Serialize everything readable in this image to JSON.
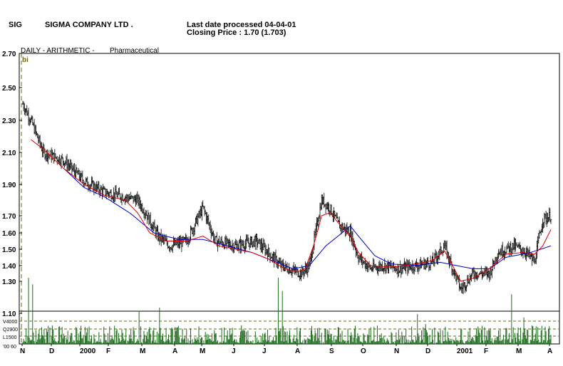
{
  "header": {
    "ticker": "SIG",
    "company": "SIGMA COMPANY LTD .",
    "last_date": "Last date processed 04-04-01",
    "closing": "Closing Price : 1.70  (1.703)"
  },
  "subheader": {
    "mode": "DAILY  -  ARITHMETIC  -",
    "sector": "Pharmaceutical",
    "marker": "bi"
  },
  "chart_data": {
    "type": "line",
    "title": "SIGMA COMPANY LTD .",
    "price_axis": {
      "ylim": [
        1.1,
        2.7
      ],
      "ticks": [
        "2.70",
        "2.50",
        "2.30",
        "2.10",
        "1.90",
        "1.70",
        "1.60",
        "1.50",
        "1.40",
        "1.30",
        "1.10"
      ]
    },
    "volume_axis": {
      "labels": [
        "V4000",
        "Q2900",
        "L1500",
        "'00  60"
      ]
    },
    "x_labels": [
      "N",
      "D",
      "2000",
      "F",
      "M",
      "A",
      "M",
      "J",
      "J",
      "A",
      "S",
      "O",
      "N",
      "D",
      "2001",
      "F",
      "M",
      "A"
    ],
    "grid": false,
    "colors": {
      "price": "#000000",
      "ma_short": "#e00000",
      "ma_long": "#0000cc",
      "volume": "#1a6b1a",
      "marker": "#6b6b1a"
    },
    "price_keypoints": [
      [
        0,
        2.4
      ],
      [
        2,
        2.3
      ],
      [
        5,
        2.1
      ],
      [
        10,
        2.05
      ],
      [
        15,
        1.92
      ],
      [
        20,
        1.85
      ],
      [
        25,
        1.82
      ],
      [
        28,
        1.8
      ],
      [
        30,
        1.72
      ],
      [
        33,
        1.58
      ],
      [
        36,
        1.52
      ],
      [
        40,
        1.55
      ],
      [
        44,
        1.75
      ],
      [
        47,
        1.55
      ],
      [
        52,
        1.52
      ],
      [
        57,
        1.55
      ],
      [
        60,
        1.48
      ],
      [
        63,
        1.4
      ],
      [
        66,
        1.37
      ],
      [
        68,
        1.35
      ],
      [
        70,
        1.4
      ],
      [
        73,
        1.8
      ],
      [
        75,
        1.75
      ],
      [
        77,
        1.65
      ],
      [
        80,
        1.6
      ],
      [
        82,
        1.45
      ],
      [
        85,
        1.38
      ],
      [
        88,
        1.4
      ],
      [
        92,
        1.38
      ],
      [
        96,
        1.4
      ],
      [
        100,
        1.42
      ],
      [
        103,
        1.52
      ],
      [
        105,
        1.38
      ],
      [
        107,
        1.25
      ],
      [
        110,
        1.35
      ],
      [
        114,
        1.35
      ],
      [
        116,
        1.48
      ],
      [
        120,
        1.52
      ],
      [
        123,
        1.48
      ],
      [
        125,
        1.42
      ],
      [
        127,
        1.68
      ],
      [
        129,
        1.7
      ]
    ],
    "ma_short": [
      [
        2,
        2.18
      ],
      [
        5,
        2.12
      ],
      [
        10,
        2.0
      ],
      [
        15,
        1.9
      ],
      [
        20,
        1.83
      ],
      [
        25,
        1.8
      ],
      [
        28,
        1.72
      ],
      [
        31,
        1.6
      ],
      [
        35,
        1.55
      ],
      [
        40,
        1.55
      ],
      [
        44,
        1.58
      ],
      [
        48,
        1.52
      ],
      [
        52,
        1.5
      ],
      [
        56,
        1.48
      ],
      [
        60,
        1.44
      ],
      [
        64,
        1.38
      ],
      [
        67,
        1.36
      ],
      [
        69,
        1.38
      ],
      [
        71,
        1.52
      ],
      [
        73,
        1.7
      ],
      [
        75,
        1.72
      ],
      [
        77,
        1.66
      ],
      [
        80,
        1.58
      ],
      [
        82,
        1.48
      ],
      [
        85,
        1.4
      ],
      [
        90,
        1.39
      ],
      [
        96,
        1.41
      ],
      [
        100,
        1.43
      ],
      [
        103,
        1.49
      ],
      [
        105,
        1.4
      ],
      [
        107,
        1.3
      ],
      [
        110,
        1.32
      ],
      [
        114,
        1.38
      ],
      [
        118,
        1.47
      ],
      [
        122,
        1.48
      ],
      [
        125,
        1.47
      ],
      [
        127,
        1.52
      ],
      [
        129,
        1.62
      ]
    ],
    "ma_long": [
      [
        10,
        2.0
      ],
      [
        15,
        1.88
      ],
      [
        20,
        1.82
      ],
      [
        26,
        1.72
      ],
      [
        32,
        1.6
      ],
      [
        38,
        1.56
      ],
      [
        44,
        1.56
      ],
      [
        50,
        1.52
      ],
      [
        56,
        1.48
      ],
      [
        62,
        1.42
      ],
      [
        66,
        1.38
      ],
      [
        70,
        1.4
      ],
      [
        74,
        1.52
      ],
      [
        78,
        1.6
      ],
      [
        80,
        1.64
      ],
      [
        82,
        1.58
      ],
      [
        86,
        1.46
      ],
      [
        90,
        1.41
      ],
      [
        96,
        1.4
      ],
      [
        102,
        1.42
      ],
      [
        106,
        1.4
      ],
      [
        110,
        1.38
      ],
      [
        114,
        1.38
      ],
      [
        118,
        1.45
      ],
      [
        124,
        1.48
      ],
      [
        129,
        1.52
      ]
    ],
    "volume_spikes": [
      [
        1,
        1.0
      ],
      [
        2,
        0.9
      ],
      [
        28,
        0.5
      ],
      [
        33,
        0.55
      ],
      [
        62,
        1.0
      ],
      [
        63,
        0.8
      ],
      [
        96,
        0.45
      ],
      [
        98,
        0.3
      ],
      [
        119,
        0.75
      ],
      [
        122,
        0.4
      ],
      [
        129,
        0.5
      ]
    ]
  }
}
